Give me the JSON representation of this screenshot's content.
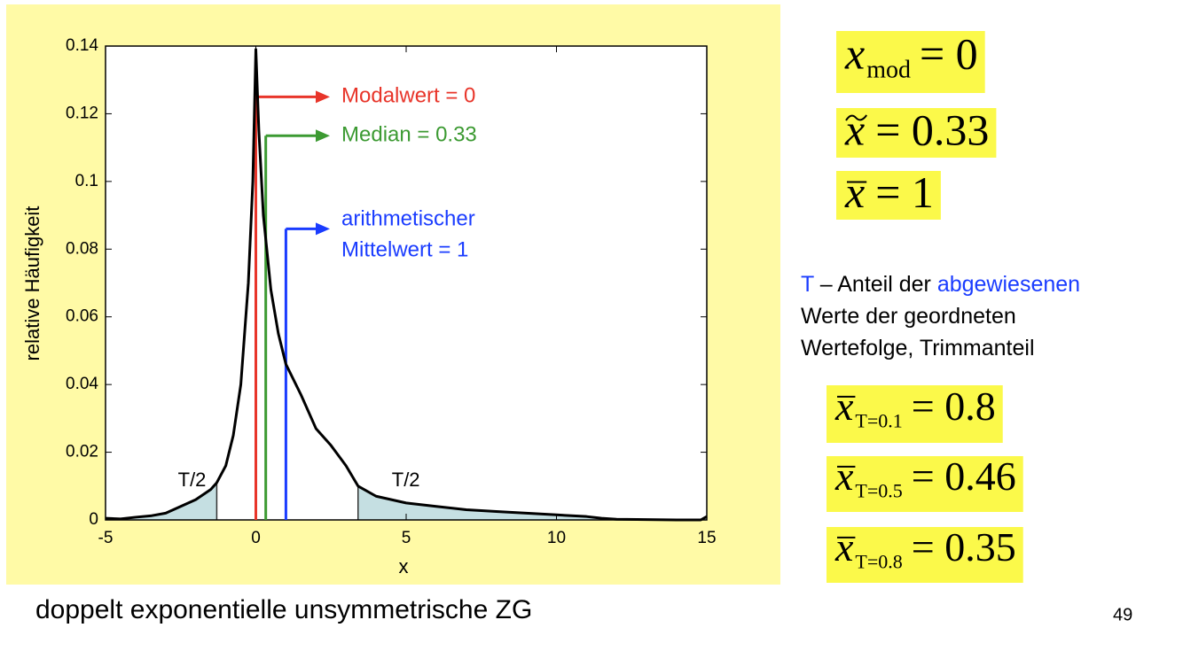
{
  "chart_data": {
    "type": "line",
    "xlabel": "x",
    "ylabel": "relative Häufigkeit",
    "x": [
      -5,
      -4.5,
      -4,
      -3.5,
      -3,
      -2.5,
      -2,
      -1.5,
      -1.3,
      -1,
      -0.75,
      -0.5,
      -0.25,
      -0.1,
      0,
      0.1,
      0.25,
      0.5,
      0.75,
      1,
      1.5,
      2,
      2.5,
      3,
      3.4,
      4,
      5,
      6,
      7,
      8,
      9,
      10,
      11,
      11.5,
      12,
      13,
      14,
      14.8,
      15
    ],
    "series": [
      {
        "color": "#000000",
        "values": [
          0.0005,
          0.0003,
          0.0008,
          0.0012,
          0.002,
          0.004,
          0.006,
          0.009,
          0.011,
          0.016,
          0.025,
          0.04,
          0.07,
          0.1,
          0.139,
          0.115,
          0.09,
          0.068,
          0.055,
          0.046,
          0.037,
          0.027,
          0.022,
          0.016,
          0.01,
          0.007,
          0.005,
          0.004,
          0.003,
          0.0025,
          0.002,
          0.0015,
          0.001,
          0.0005,
          0.0002,
          0.0001,
          0,
          0,
          0.001
        ]
      }
    ],
    "xlim": [
      -5,
      15
    ],
    "xticks": [
      -5,
      0,
      5,
      10,
      15
    ],
    "ylim": [
      0,
      0.14
    ],
    "yticks": [
      0,
      0.02,
      0.04,
      0.06,
      0.08,
      0.1,
      0.12,
      0.14
    ],
    "annotations": [
      {
        "lines": [
          "Modalwert = 0"
        ],
        "x": 0,
        "line_top": 0.139,
        "arrow_y": 0.125,
        "color": "#e8352a"
      },
      {
        "lines": [
          "Median = 0.33"
        ],
        "x": 0.33,
        "line_top": 0.1135,
        "arrow_y": 0.1135,
        "color": "#3c9a32"
      },
      {
        "lines": [
          "arithmetischer",
          "Mittelwert = 1"
        ],
        "x": 1,
        "line_top": 0.086,
        "arrow_y": 0.086,
        "color": "#1a3cff"
      }
    ],
    "shaded": [
      {
        "x0": -5,
        "x1": -1.3,
        "label": "T/2"
      },
      {
        "x0": 3.4,
        "x1": 15,
        "label": "T/2"
      }
    ],
    "shade_color": "#c5dfe2"
  },
  "caption": "doppelt exponentielle unsymmetrische ZG",
  "page_number": "49",
  "formulas": [
    {
      "base": "x",
      "sub": "mod",
      "rhs": "= 0"
    },
    {
      "base": "x",
      "accent": "tilde",
      "rhs": "= 0.33"
    },
    {
      "base": "x",
      "accent": "bar",
      "rhs": "= 1"
    },
    {
      "base": "x",
      "accent": "bar",
      "sub": "T=0.1",
      "rhs": "= 0.8"
    },
    {
      "base": "x",
      "accent": "bar",
      "sub": "T=0.5",
      "rhs": "= 0.46"
    },
    {
      "base": "x",
      "accent": "bar",
      "sub": "T=0.8",
      "rhs": "= 0.35"
    }
  ],
  "definition": [
    [
      {
        "text": "T",
        "color": "#1a3cff"
      },
      {
        "text": " – Anteil der "
      },
      {
        "text": "abgewiesenen",
        "color": "#1a3cff"
      }
    ],
    [
      {
        "text": "Werte der geordneten"
      }
    ],
    [
      {
        "text": "Wertefolge, Trimmanteil"
      }
    ]
  ]
}
